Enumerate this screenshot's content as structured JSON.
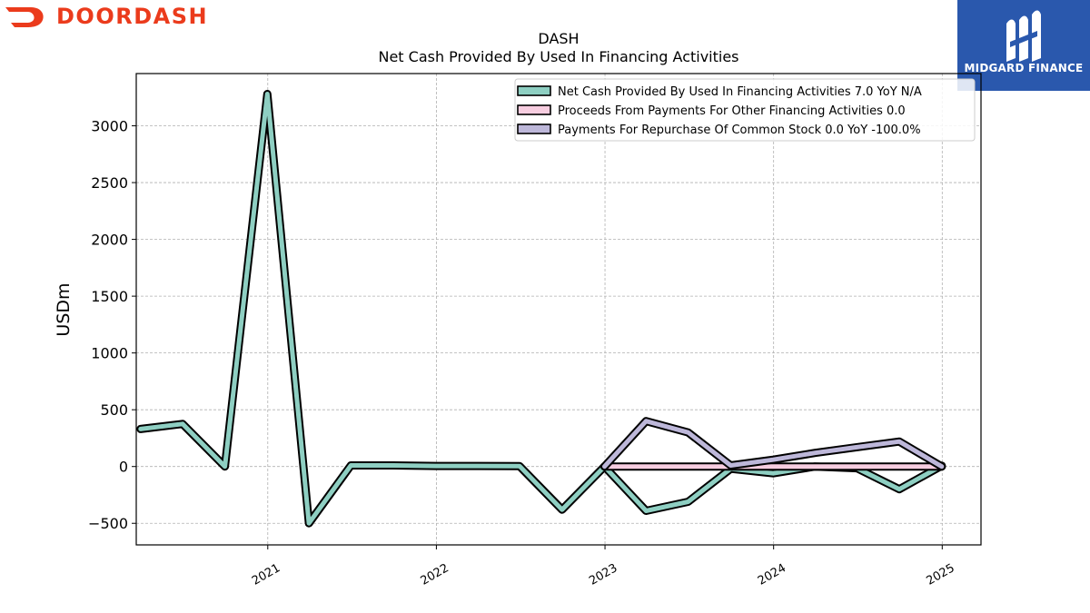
{
  "branding": {
    "company_logo_text": "DOORDASH",
    "company_color": "#eb3b1c",
    "watermark_text": "MIDGARD FINANCE",
    "watermark_color": "#2a58ad"
  },
  "chart_data": {
    "type": "line",
    "title": "DASH",
    "subtitle": "Net Cash Provided By Used In Financing Activities",
    "xlabel": "",
    "ylabel": "USDm",
    "x_ticks": [
      "2021",
      "2022",
      "2023",
      "2024",
      "2025"
    ],
    "y_ticks": [
      "−500",
      "0",
      "500",
      "1000",
      "1500",
      "2000",
      "2500",
      "3000"
    ],
    "xlim": [
      2020.22,
      2025.23
    ],
    "ylim": [
      -690,
      3460
    ],
    "grid": true,
    "legend_position": "top-right",
    "series": [
      {
        "name": "Net Cash Provided By Used In Financing Activities",
        "legend_label": "Net Cash Provided By Used In Financing Activities  7.0 YoY N/A",
        "color": "#8ecfc2",
        "x": [
          "2020-03-31",
          "2020-06-30",
          "2020-09-30",
          "2020-12-31",
          "2021-03-31",
          "2021-06-30",
          "2021-09-30",
          "2021-12-31",
          "2022-03-31",
          "2022-06-30",
          "2022-09-30",
          "2022-12-31",
          "2023-03-31",
          "2023-06-30",
          "2023-09-30",
          "2023-12-31",
          "2024-03-31",
          "2024-06-30",
          "2024-09-30",
          "2024-12-31"
        ],
        "y": [
          330,
          375,
          0,
          3280,
          -500,
          10,
          10,
          5,
          5,
          3,
          -380,
          0,
          -390,
          -310,
          -20,
          -60,
          0,
          -15,
          -200,
          7
        ]
      },
      {
        "name": "Proceeds From Payments For Other Financing Activities",
        "legend_label": "Proceeds From Payments For Other Financing Activities  0.0",
        "color": "#f7cde0",
        "x": [
          "2022-12-31",
          "2023-03-31",
          "2023-06-30",
          "2023-09-30",
          "2023-12-31",
          "2024-03-31",
          "2024-06-30",
          "2024-09-30",
          "2024-12-31"
        ],
        "y": [
          0,
          0,
          0,
          0,
          0,
          0,
          0,
          0,
          0
        ]
      },
      {
        "name": "Payments For Repurchase Of Common Stock",
        "legend_label": "Payments For Repurchase Of Common Stock  0.0 YoY -100.0%",
        "color": "#bdb7d9",
        "x": [
          "2022-12-31",
          "2023-03-31",
          "2023-06-30",
          "2023-09-30",
          "2023-12-31",
          "2024-03-31",
          "2024-06-30",
          "2024-09-30",
          "2024-12-31"
        ],
        "y": [
          0,
          400,
          300,
          10,
          60,
          120,
          170,
          220,
          0
        ]
      }
    ]
  }
}
